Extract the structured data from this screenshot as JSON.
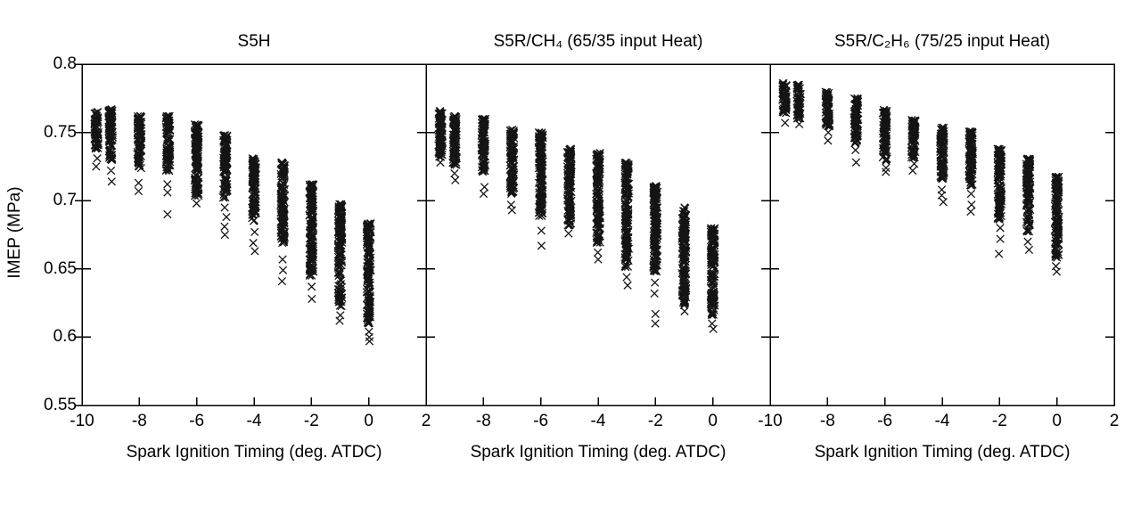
{
  "chart_data": {
    "type": "scatter",
    "marker": "x",
    "marker_color": "#000000",
    "xlabel": "Spark Ignition Timing (deg. ATDC)",
    "ylabel": "IMEP (MPa)",
    "xlim": [
      -10,
      2
    ],
    "ylim": [
      0.55,
      0.8
    ],
    "grid": false,
    "legend": "none",
    "x_ticks": [
      -10,
      -8,
      -6,
      -4,
      -2,
      0,
      2
    ],
    "y_ticks": [
      0.8,
      0.75,
      0.7,
      0.65,
      0.6,
      0.55
    ],
    "y_tick_labels": [
      "0.8",
      "0.75",
      "0.7",
      "0.65",
      "0.6",
      "0.55"
    ],
    "panels": [
      {
        "title": "S5H",
        "x_tick_labels": [
          "-10",
          "-8",
          "-6",
          "-4",
          "-2",
          "0",
          "2"
        ],
        "clusters": [
          {
            "x": -9.5,
            "y_main": [
              0.765,
              0.738
            ],
            "y_outliers": [
              0.731,
              0.725
            ]
          },
          {
            "x": -9,
            "y_main": [
              0.767,
              0.729
            ],
            "y_outliers": [
              0.722,
              0.714
            ]
          },
          {
            "x": -8,
            "y_main": [
              0.762,
              0.723
            ],
            "y_outliers": [
              0.713,
              0.707
            ]
          },
          {
            "x": -7,
            "y_main": [
              0.762,
              0.721
            ],
            "y_outliers": [
              0.712,
              0.706,
              0.69
            ]
          },
          {
            "x": -6,
            "y_main": [
              0.756,
              0.703
            ],
            "y_outliers": [
              0.698
            ]
          },
          {
            "x": -5,
            "y_main": [
              0.748,
              0.701
            ],
            "y_outliers": [
              0.695,
              0.688,
              0.681,
              0.675
            ]
          },
          {
            "x": -4,
            "y_main": [
              0.731,
              0.685
            ],
            "y_outliers": [
              0.677,
              0.669,
              0.663
            ]
          },
          {
            "x": -3,
            "y_main": [
              0.728,
              0.669
            ],
            "y_outliers": [
              0.657,
              0.649,
              0.641
            ]
          },
          {
            "x": -2,
            "y_main": [
              0.712,
              0.645
            ],
            "y_outliers": [
              0.637,
              0.628
            ]
          },
          {
            "x": -1,
            "y_main": [
              0.698,
              0.622
            ],
            "y_outliers": [
              0.616,
              0.612
            ]
          },
          {
            "x": 0,
            "y_main": [
              0.684,
              0.61
            ],
            "y_outliers": [
              0.604,
              0.6,
              0.597
            ]
          }
        ]
      },
      {
        "title": "S5R/CH₄ (65/35 input Heat)",
        "x_tick_labels": [
          "",
          "-8",
          "-6",
          "-4",
          "-2",
          "0",
          ""
        ],
        "clusters": [
          {
            "x": -9.5,
            "y_main": [
              0.766,
              0.731
            ],
            "y_outliers": [
              0.728
            ]
          },
          {
            "x": -9,
            "y_main": [
              0.762,
              0.726
            ],
            "y_outliers": [
              0.72,
              0.715
            ]
          },
          {
            "x": -8,
            "y_main": [
              0.76,
              0.718
            ],
            "y_outliers": [
              0.71,
              0.705
            ]
          },
          {
            "x": -7,
            "y_main": [
              0.752,
              0.705
            ],
            "y_outliers": [
              0.697,
              0.693
            ]
          },
          {
            "x": -6,
            "y_main": [
              0.75,
              0.688
            ],
            "y_outliers": [
              0.678,
              0.667
            ]
          },
          {
            "x": -5,
            "y_main": [
              0.738,
              0.682
            ],
            "y_outliers": [
              0.676
            ]
          },
          {
            "x": -4,
            "y_main": [
              0.735,
              0.669
            ],
            "y_outliers": [
              0.662,
              0.657
            ]
          },
          {
            "x": -3,
            "y_main": [
              0.728,
              0.651
            ],
            "y_outliers": [
              0.644,
              0.638
            ]
          },
          {
            "x": -2,
            "y_main": [
              0.711,
              0.647
            ],
            "y_outliers": [
              0.64,
              0.632,
              0.617,
              0.61
            ]
          },
          {
            "x": -1,
            "y_main": [
              0.695,
              0.623
            ],
            "y_outliers": [
              0.619
            ]
          },
          {
            "x": 0,
            "y_main": [
              0.68,
              0.616
            ],
            "y_outliers": [
              0.61,
              0.606
            ]
          }
        ]
      },
      {
        "title": "S5R/C₂H₆ (75/25 input Heat)",
        "x_tick_labels": [
          "-10",
          "-8",
          "-6",
          "-4",
          "-2",
          "0",
          "2"
        ],
        "clusters": [
          {
            "x": -9.5,
            "y_main": [
              0.786,
              0.764
            ],
            "y_outliers": [
              0.757
            ]
          },
          {
            "x": -9,
            "y_main": [
              0.785,
              0.759
            ],
            "y_outliers": [
              0.756
            ]
          },
          {
            "x": -8,
            "y_main": [
              0.78,
              0.754
            ],
            "y_outliers": [
              0.75,
              0.744
            ]
          },
          {
            "x": -7,
            "y_main": [
              0.775,
              0.742
            ],
            "y_outliers": [
              0.737,
              0.728
            ]
          },
          {
            "x": -6,
            "y_main": [
              0.767,
              0.729
            ],
            "y_outliers": [
              0.724,
              0.721
            ]
          },
          {
            "x": -5,
            "y_main": [
              0.76,
              0.731
            ],
            "y_outliers": [
              0.727,
              0.722
            ]
          },
          {
            "x": -4,
            "y_main": [
              0.754,
              0.715
            ],
            "y_outliers": [
              0.708,
              0.704,
              0.699
            ]
          },
          {
            "x": -3,
            "y_main": [
              0.751,
              0.71
            ],
            "y_outliers": [
              0.705,
              0.697,
              0.692
            ]
          },
          {
            "x": -2,
            "y_main": [
              0.738,
              0.686
            ],
            "y_outliers": [
              0.68,
              0.672,
              0.661
            ]
          },
          {
            "x": -1,
            "y_main": [
              0.731,
              0.677
            ],
            "y_outliers": [
              0.67,
              0.664
            ]
          },
          {
            "x": 0,
            "y_main": [
              0.718,
              0.658
            ],
            "y_outliers": [
              0.652,
              0.648
            ]
          }
        ]
      }
    ]
  }
}
